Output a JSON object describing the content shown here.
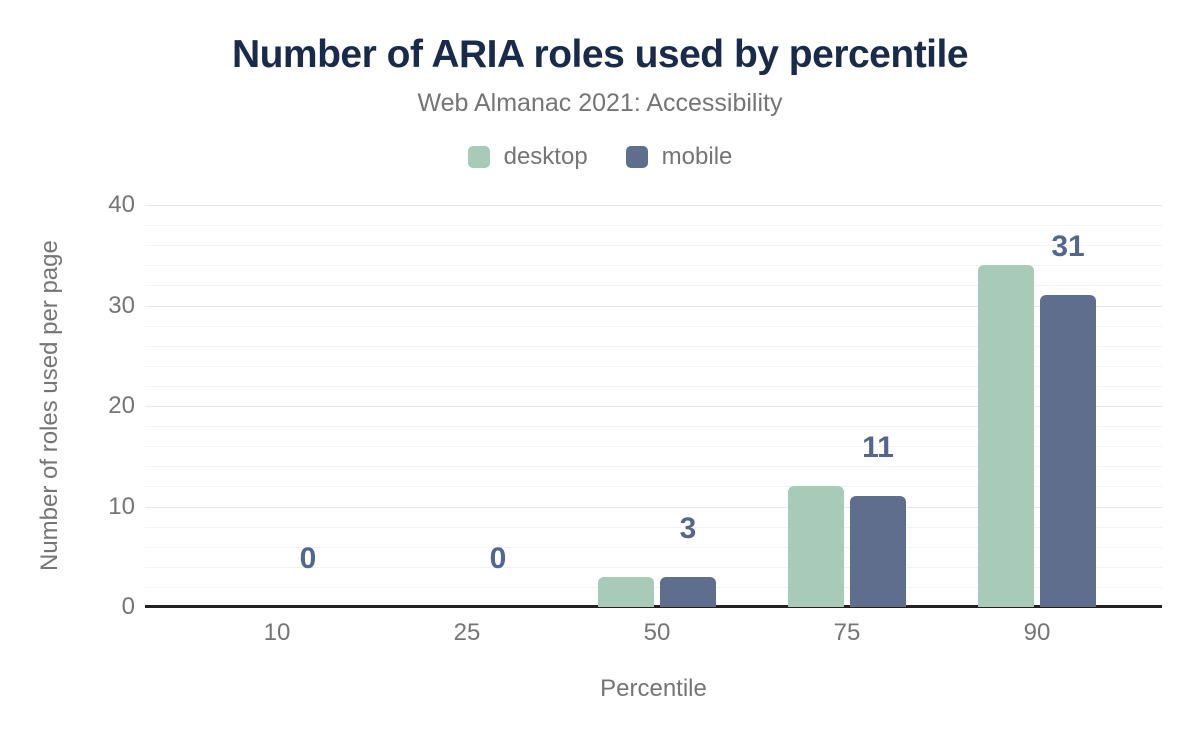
{
  "chart_data": {
    "type": "bar",
    "title": "Number of ARIA roles used by percentile",
    "subtitle": "Web Almanac 2021: Accessibility",
    "categories": [
      "10",
      "25",
      "50",
      "75",
      "90"
    ],
    "series": [
      {
        "name": "desktop",
        "color": "#a8cab9",
        "values": [
          0,
          0,
          3,
          12,
          34
        ]
      },
      {
        "name": "mobile",
        "color": "#5f6e8c",
        "values": [
          0,
          0,
          3,
          11,
          31
        ]
      }
    ],
    "data_labels": {
      "labeled_series": "mobile",
      "values": [
        "0",
        "0",
        "3",
        "11",
        "31"
      ],
      "color": "#53678e"
    },
    "xlabel": "Percentile",
    "ylabel": "Number of roles used per page",
    "ylim": [
      0,
      40
    ],
    "yticks": [
      0,
      10,
      20,
      30,
      40
    ],
    "minor_grid_step": 2,
    "major_grid_step": 10,
    "grid": true,
    "legend_position": "top",
    "colors": {
      "title": "#1a2b49",
      "subtitle": "#757575",
      "axis_text": "#757575",
      "axis_line": "#212121",
      "major_grid": "#e8e8e8",
      "minor_grid": "#f3f3f3",
      "background": "#ffffff"
    }
  }
}
